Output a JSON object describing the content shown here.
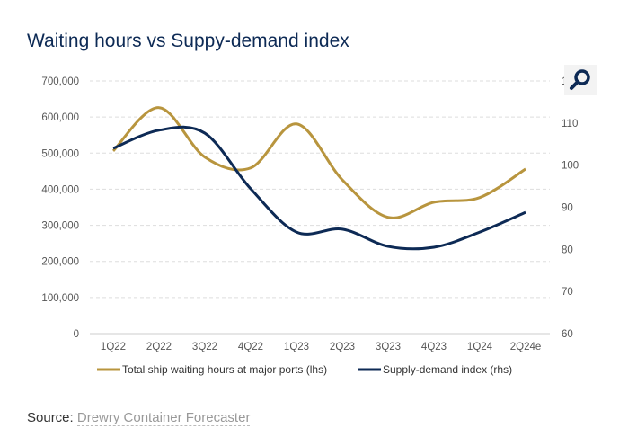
{
  "title": "Waiting hours vs Suppy-demand index",
  "source": {
    "label": "Source:",
    "link": "Drewry Container Forecaster"
  },
  "chart_data": {
    "type": "line",
    "categories": [
      "1Q22",
      "2Q22",
      "3Q22",
      "4Q22",
      "1Q23",
      "2Q23",
      "3Q23",
      "4Q23",
      "1Q24",
      "2Q24e"
    ],
    "left_axis": {
      "ylim": [
        0,
        700000
      ],
      "ticks": [
        "0",
        "100,000",
        "200,000",
        "300,000",
        "400,000",
        "500,000",
        "600,000",
        "700,000"
      ]
    },
    "right_axis": {
      "ylim": [
        60,
        120
      ],
      "ticks": [
        "60",
        "70",
        "80",
        "90",
        "100",
        "110",
        "120"
      ]
    },
    "series": [
      {
        "name": "Total ship waiting hours at major ports (lhs)",
        "axis": "left",
        "color": "#b8953e",
        "values": [
          506000,
          626000,
          489000,
          459000,
          581000,
          426000,
          322000,
          364000,
          377000,
          456000
        ]
      },
      {
        "name": "Supply-demand index (rhs)",
        "axis": "right",
        "color": "#0d2a55",
        "values": [
          104,
          108.3,
          107.6,
          94.4,
          84.1,
          84.8,
          80.7,
          80.5,
          84.1,
          88.8
        ]
      }
    ],
    "grid": true,
    "legend": "bottom"
  }
}
